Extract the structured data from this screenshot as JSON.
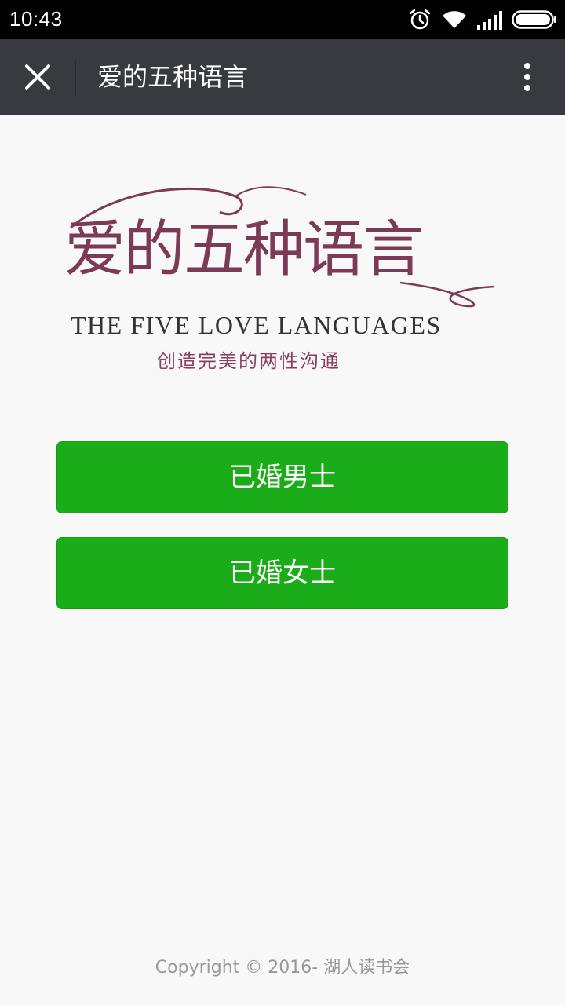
{
  "status_bar": {
    "time": "10:43",
    "icons": [
      "alarm-icon",
      "wifi-icon",
      "signal-icon",
      "battery-icon"
    ]
  },
  "title_bar": {
    "title": "爱的五种语言",
    "close_icon": "close-icon",
    "more_icon": "more-vertical-icon"
  },
  "logo": {
    "title": "爱的五种语言",
    "subtitle": "THE FIVE LOVE LANGUAGES",
    "tagline": "创造完美的两性沟通",
    "color": "#7d3a55"
  },
  "buttons": {
    "married_men": "已婚男士",
    "married_women": "已婚女士",
    "color": "#1aad19"
  },
  "footer": {
    "copyright": "Copyright © 2016- 湖人读书会"
  }
}
